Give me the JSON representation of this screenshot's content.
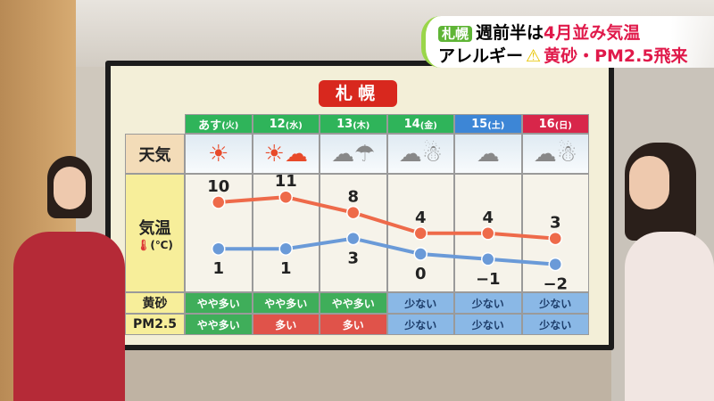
{
  "caption": {
    "tag": "札幌",
    "line1_black": "週前半は",
    "line1_red": "4月並み気温",
    "line2_black": "アレルギー",
    "warning_icon": "warning-triangle",
    "line2_red": "黄砂・PM2.5飛来"
  },
  "board": {
    "city": "札幌",
    "row_labels": {
      "weather": "天気",
      "temperature": "気温",
      "temp_unit": "(℃)",
      "kosa": "黄砂",
      "pm25": "PM2.5"
    },
    "days": [
      {
        "label": "あす",
        "dow": "(火)",
        "color": "#2fb45a",
        "weather": "sunny",
        "high": 10,
        "low": 1,
        "kosa": "やや多い",
        "pm25": "やや多い"
      },
      {
        "label": "12",
        "dow": "(水)",
        "color": "#2fb45a",
        "weather": "sunny-then-cloudy",
        "high": 11,
        "low": 1,
        "kosa": "やや多い",
        "pm25": "多い"
      },
      {
        "label": "13",
        "dow": "(木)",
        "color": "#2fb45a",
        "weather": "cloudy-occasional-rain",
        "high": 8,
        "low": 3,
        "kosa": "やや多い",
        "pm25": "多い"
      },
      {
        "label": "14",
        "dow": "(金)",
        "color": "#2fb45a",
        "weather": "cloudy-occasional-snow",
        "high": 4,
        "low": 0,
        "kosa": "少ない",
        "pm25": "少ない"
      },
      {
        "label": "15",
        "dow": "(土)",
        "color": "#3d86d6",
        "weather": "cloudy",
        "high": 4,
        "low": -1,
        "kosa": "少ない",
        "pm25": "少ない"
      },
      {
        "label": "16",
        "dow": "(日)",
        "color": "#d8264a",
        "weather": "cloudy-occasional-snow",
        "high": 3,
        "low": -2,
        "kosa": "少ない",
        "pm25": "少ない"
      }
    ],
    "level_colors": {
      "やや多い": "#3fae5a",
      "多い": "#e0534a",
      "少ない": "#8ab8e6"
    },
    "high_color": "#ee6a4a",
    "low_color": "#6a9ad8"
  }
}
